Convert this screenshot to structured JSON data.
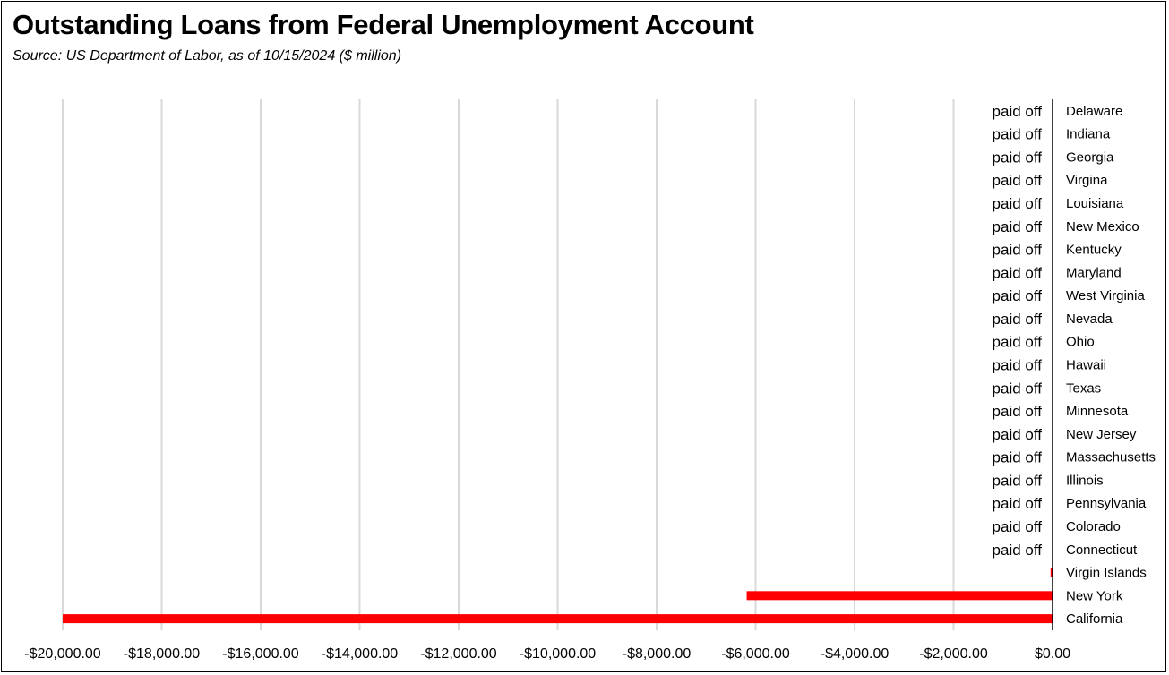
{
  "header": {
    "title": "Outstanding Loans from Federal Unemployment Account",
    "subtitle": "Source:  US Department of Labor, as of 10/15/2024  ($ million)"
  },
  "colors": {
    "bar": "#ff0000",
    "grid": "#d9d9d9",
    "axis": "#000000"
  },
  "chart_data": {
    "type": "bar",
    "orientation": "horizontal",
    "title": "Outstanding Loans from Federal Unemployment Account",
    "subtitle": "Source:  US Department of Labor, as of 10/15/2024  ($ million)",
    "xlim": [
      -20000,
      0
    ],
    "x_ticks": [
      -20000,
      -18000,
      -16000,
      -14000,
      -12000,
      -10000,
      -8000,
      -6000,
      -4000,
      -2000,
      0
    ],
    "x_tick_labels": [
      "-$20,000.00",
      "-$18,000.00",
      "-$16,000.00",
      "-$14,000.00",
      "-$12,000.00",
      "-$10,000.00",
      "-$8,000.00",
      "-$6,000.00",
      "-$4,000.00",
      "-$2,000.00",
      "$0.00"
    ],
    "grid": true,
    "categories": [
      "Delaware",
      "Indiana",
      "Georgia",
      "Virgina",
      "Louisiana",
      "New Mexico",
      "Kentucky",
      "Maryland",
      "West Virginia",
      "Nevada",
      "Ohio",
      "Hawaii",
      "Texas",
      "Minnesota",
      "New Jersey",
      "Massachusetts",
      "Illinois",
      "Pennsylvania",
      "Colorado",
      "Connecticut",
      "Virgin Islands",
      "New York",
      "California"
    ],
    "values": [
      0,
      0,
      0,
      0,
      0,
      0,
      0,
      0,
      0,
      0,
      0,
      0,
      0,
      0,
      0,
      0,
      0,
      0,
      0,
      0,
      -40,
      -6180,
      -20000
    ],
    "data_labels": [
      "paid off",
      "paid off",
      "paid off",
      "paid off",
      "paid off",
      "paid off",
      "paid off",
      "paid off",
      "paid off",
      "paid off",
      "paid off",
      "paid off",
      "paid off",
      "paid off",
      "paid off",
      "paid off",
      "paid off",
      "paid off",
      "paid off",
      "paid off",
      "",
      "",
      ""
    ]
  }
}
